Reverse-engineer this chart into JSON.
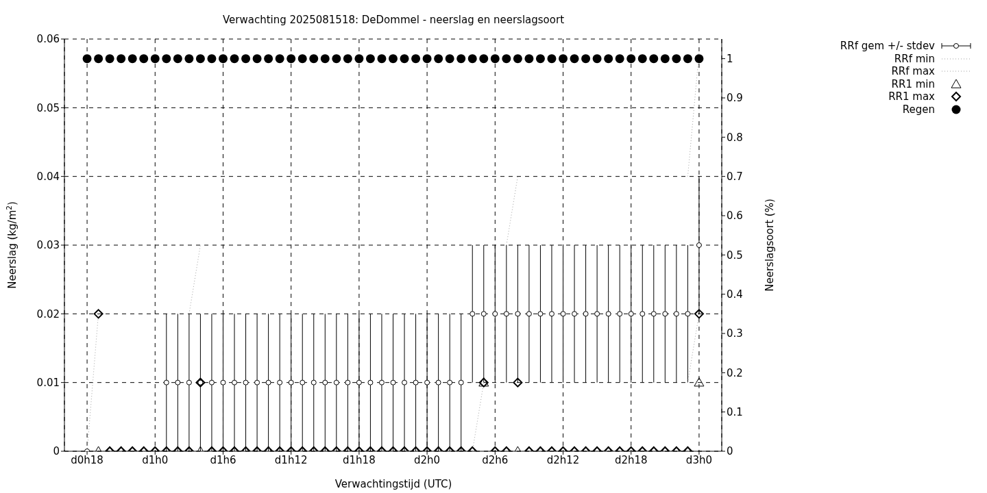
{
  "chart_data": {
    "type": "scatter",
    "title": "Verwachting 2025081518: DeDommel - neerslag en neerslagsoort",
    "xlabel": "Verwachtingstijd (UTC)",
    "ylabel": "Neerslag (kg/m$^{2}$)",
    "y2label": "Neerslagsoort (%)",
    "categories": [
      "d0h18",
      null,
      null,
      null,
      null,
      null,
      "d1h0",
      null,
      null,
      null,
      null,
      null,
      "d1h6",
      null,
      null,
      null,
      null,
      null,
      "d1h12",
      null,
      null,
      null,
      null,
      null,
      "d1h18",
      null,
      null,
      null,
      null,
      null,
      "d2h0",
      null,
      null,
      null,
      null,
      null,
      "d2h6",
      null,
      null,
      null,
      null,
      null,
      "d2h12",
      null,
      null,
      null,
      null,
      null,
      "d2h18",
      null,
      null,
      null,
      null,
      null,
      "d3h0"
    ],
    "ylim": [
      0,
      0.06
    ],
    "yticks": [
      0,
      0.01,
      0.02,
      0.03,
      0.04,
      0.05,
      0.06
    ],
    "y2lim": [
      0,
      1.05
    ],
    "y2ticks": [
      0,
      0.1,
      0.2,
      0.3,
      0.4,
      0.5,
      0.6,
      0.7,
      0.8,
      0.9,
      1
    ],
    "grid": true,
    "legend": "top right",
    "series": [
      {
        "name": "RRf gem +/- stdev",
        "marker": "circle",
        "color": "#000000",
        "values": [
          0,
          null,
          null,
          null,
          null,
          null,
          null,
          0.01,
          0.01,
          0.01,
          0.01,
          0.01,
          0.01,
          0.01,
          0.01,
          0.01,
          0.01,
          0.01,
          0.01,
          0.01,
          0.01,
          0.01,
          0.01,
          0.01,
          0.01,
          0.01,
          0.01,
          0.01,
          0.01,
          0.01,
          0.01,
          0.01,
          0.01,
          0.01,
          0.02,
          0.02,
          0.02,
          0.02,
          0.02,
          0.02,
          0.02,
          0.02,
          0.02,
          0.02,
          0.02,
          0.02,
          0.02,
          0.02,
          0.02,
          0.02,
          0.02,
          0.02,
          0.02,
          0.02,
          0.03
        ],
        "errors": [
          null,
          null,
          null,
          null,
          null,
          null,
          null,
          0.01,
          0.01,
          0.01,
          0.01,
          0.01,
          0.01,
          0.01,
          0.01,
          0.01,
          0.01,
          0.01,
          0.01,
          0.01,
          0.01,
          0.01,
          0.01,
          0.01,
          0.01,
          0.01,
          0.01,
          0.01,
          0.01,
          0.01,
          0.01,
          0.01,
          0.01,
          0.01,
          0.01,
          0.01,
          0.01,
          0.01,
          0.01,
          0.01,
          0.01,
          0.01,
          0.01,
          0.01,
          0.01,
          0.01,
          0.01,
          0.01,
          0.01,
          0.01,
          0.01,
          0.01,
          0.01,
          0.01,
          0.01
        ]
      },
      {
        "name": "RRf min",
        "type": "line",
        "marker": "none",
        "line_style": "dotted",
        "color": "#a0a0a0",
        "values": [
          0,
          0.02,
          null,
          null,
          null,
          null,
          null,
          null,
          null,
          null,
          null,
          null,
          null,
          null,
          null,
          null,
          null,
          null,
          null,
          null,
          null,
          null,
          null,
          null,
          null,
          null,
          null,
          null,
          null,
          null,
          null,
          null,
          null,
          null,
          0,
          0.01,
          null,
          null,
          null,
          null,
          null,
          null,
          null,
          null,
          null,
          null,
          null,
          null,
          null,
          null,
          null,
          null,
          null,
          0.01,
          0.02
        ]
      },
      {
        "name": "RRf max",
        "type": "line",
        "marker": "none",
        "line_style": "dotted",
        "color": "#a0a0a0",
        "values": [
          null,
          null,
          null,
          null,
          null,
          null,
          null,
          null,
          null,
          0.02,
          0.03,
          null,
          null,
          null,
          null,
          null,
          null,
          null,
          null,
          null,
          null,
          null,
          null,
          null,
          null,
          null,
          null,
          null,
          null,
          null,
          null,
          null,
          null,
          null,
          null,
          null,
          null,
          0.03,
          0.04,
          null,
          null,
          null,
          null,
          null,
          null,
          null,
          null,
          null,
          null,
          null,
          null,
          null,
          null,
          0.04,
          0.058
        ]
      },
      {
        "name": "RR1 min",
        "marker": "triangle",
        "color": "#000000",
        "values": [
          null,
          0,
          0,
          0,
          0,
          0,
          0,
          0,
          0,
          0,
          0,
          0,
          0,
          0,
          0,
          0,
          0,
          0,
          0,
          0,
          0,
          0,
          0,
          0,
          0,
          0,
          0,
          0,
          0,
          0,
          0,
          0,
          0,
          0,
          0,
          0.01,
          0,
          0,
          0,
          0,
          0,
          0,
          0,
          0,
          0,
          0,
          0,
          0,
          0,
          0,
          0,
          0,
          0,
          0,
          0.01
        ]
      },
      {
        "name": "RR1 max",
        "marker": "diamond",
        "color": "#000000",
        "values": [
          null,
          0.02,
          0,
          0,
          0,
          0,
          0,
          0,
          0,
          0,
          0.01,
          0,
          0,
          0,
          0,
          0,
          0,
          0,
          0,
          0,
          0,
          0,
          0,
          0,
          0,
          0,
          0,
          0,
          0,
          0,
          0,
          0,
          0,
          0,
          0,
          0.01,
          0,
          0,
          0.01,
          0,
          0,
          0,
          0,
          0,
          0,
          0,
          0,
          0,
          0,
          0,
          0,
          0,
          0,
          0,
          0.02
        ]
      },
      {
        "name": "Regen",
        "marker": "circle",
        "axis": "y2",
        "color": "#000000",
        "values": [
          1,
          1,
          1,
          1,
          1,
          1,
          1,
          1,
          1,
          1,
          1,
          1,
          1,
          1,
          1,
          1,
          1,
          1,
          1,
          1,
          1,
          1,
          1,
          1,
          1,
          1,
          1,
          1,
          1,
          1,
          1,
          1,
          1,
          1,
          1,
          1,
          1,
          1,
          1,
          1,
          1,
          1,
          1,
          1,
          1,
          1,
          1,
          1,
          1,
          1,
          1,
          1,
          1,
          1,
          1
        ]
      }
    ]
  }
}
